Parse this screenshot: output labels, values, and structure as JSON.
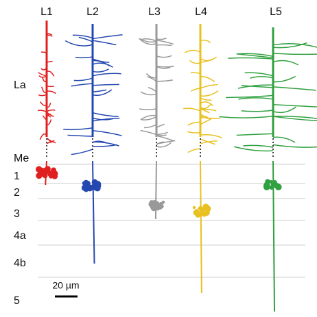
{
  "columns": [
    "L1",
    "L2",
    "L3",
    "L4",
    "L5"
  ],
  "layers": [
    "La",
    "Me",
    "1",
    "2",
    "3",
    "4a",
    "4b",
    "5"
  ],
  "scale_bar": "20 µm"
}
